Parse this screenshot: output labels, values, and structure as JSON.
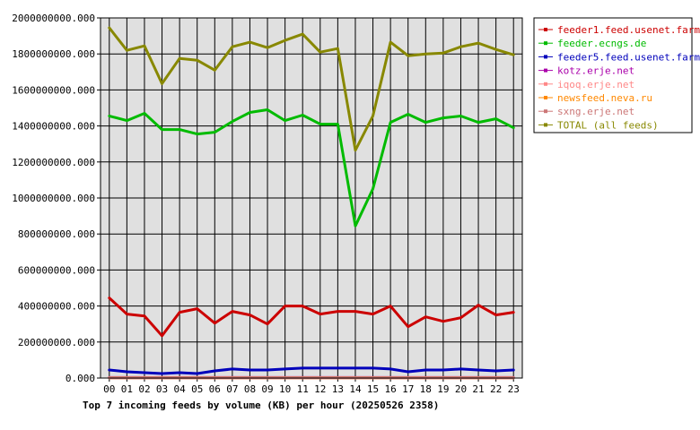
{
  "chart_data": {
    "type": "line",
    "title": "Top 7 incoming feeds by volume (KB) per hour (20250526 2358)",
    "xlabel": "",
    "ylabel": "",
    "categories": [
      "00",
      "01",
      "02",
      "03",
      "04",
      "05",
      "06",
      "07",
      "08",
      "09",
      "10",
      "11",
      "12",
      "13",
      "14",
      "15",
      "16",
      "17",
      "18",
      "19",
      "20",
      "21",
      "22",
      "23"
    ],
    "ylim": [
      0,
      2000000000
    ],
    "yticks": [
      "0.000",
      "200000000.000",
      "400000000.000",
      "600000000.000",
      "800000000.000",
      "1000000000.000",
      "1200000000.000",
      "1400000000.000",
      "1600000000.000",
      "1800000000.000",
      "2000000000.000"
    ],
    "grid": true,
    "legend_position": "right",
    "series": [
      {
        "name": "feeder1.feed.usenet.farm",
        "color": "#cc0000",
        "values": [
          445000000,
          355000000,
          345000000,
          235000000,
          365000000,
          385000000,
          305000000,
          370000000,
          350000000,
          300000000,
          400000000,
          400000000,
          355000000,
          370000000,
          370000000,
          355000000,
          400000000,
          285000000,
          340000000,
          315000000,
          335000000,
          405000000,
          350000000,
          365000000
        ]
      },
      {
        "name": "feeder.ecngs.de",
        "color": "#00bb00",
        "values": [
          1455000000,
          1430000000,
          1470000000,
          1380000000,
          1380000000,
          1355000000,
          1365000000,
          1425000000,
          1475000000,
          1490000000,
          1430000000,
          1460000000,
          1410000000,
          1410000000,
          845000000,
          1050000000,
          1420000000,
          1465000000,
          1420000000,
          1445000000,
          1455000000,
          1420000000,
          1440000000,
          1390000000
        ]
      },
      {
        "name": "feeder5.feed.usenet.farm",
        "color": "#0000bb",
        "values": [
          45000000,
          35000000,
          30000000,
          25000000,
          30000000,
          25000000,
          40000000,
          50000000,
          45000000,
          45000000,
          50000000,
          55000000,
          55000000,
          55000000,
          55000000,
          55000000,
          50000000,
          35000000,
          45000000,
          45000000,
          50000000,
          45000000,
          40000000,
          45000000
        ]
      },
      {
        "name": "kotz.erje.net",
        "color": "#aa00aa",
        "values": [
          3000000,
          3000000,
          3000000,
          3000000,
          3000000,
          3000000,
          3000000,
          3000000,
          3000000,
          3000000,
          3000000,
          3000000,
          3000000,
          3000000,
          3000000,
          3000000,
          3000000,
          3000000,
          3000000,
          3000000,
          3000000,
          3000000,
          3000000,
          3000000
        ]
      },
      {
        "name": "iqoq.erje.net",
        "color": "#ff8888",
        "values": [
          2000000,
          2000000,
          2000000,
          2000000,
          2000000,
          2000000,
          2000000,
          2000000,
          2000000,
          2000000,
          2000000,
          2000000,
          2000000,
          2000000,
          2000000,
          2000000,
          2000000,
          2000000,
          2000000,
          2000000,
          2000000,
          2000000,
          2000000,
          2000000
        ]
      },
      {
        "name": "newsfeed.neva.ru",
        "color": "#ff8800",
        "values": [
          1000000,
          1000000,
          1000000,
          1000000,
          1000000,
          1000000,
          1000000,
          1000000,
          1000000,
          1000000,
          1000000,
          1000000,
          1000000,
          1000000,
          1000000,
          1000000,
          1000000,
          1000000,
          1000000,
          1000000,
          1000000,
          1000000,
          1000000,
          1000000
        ]
      },
      {
        "name": "sxng.erje.net",
        "color": "#cc7777",
        "values": [
          1000000,
          1000000,
          1000000,
          1000000,
          1000000,
          1000000,
          1000000,
          1000000,
          1000000,
          1000000,
          1000000,
          1000000,
          1000000,
          1000000,
          1000000,
          1000000,
          1000000,
          1000000,
          1000000,
          1000000,
          1000000,
          1000000,
          1000000,
          1000000
        ]
      },
      {
        "name": "TOTAL (all feeds)",
        "color": "#888800",
        "values": [
          1945000000,
          1820000000,
          1845000000,
          1635000000,
          1775000000,
          1765000000,
          1710000000,
          1840000000,
          1865000000,
          1835000000,
          1875000000,
          1910000000,
          1810000000,
          1830000000,
          1265000000,
          1455000000,
          1865000000,
          1790000000,
          1800000000,
          1805000000,
          1840000000,
          1860000000,
          1825000000,
          1795000000
        ]
      }
    ]
  }
}
